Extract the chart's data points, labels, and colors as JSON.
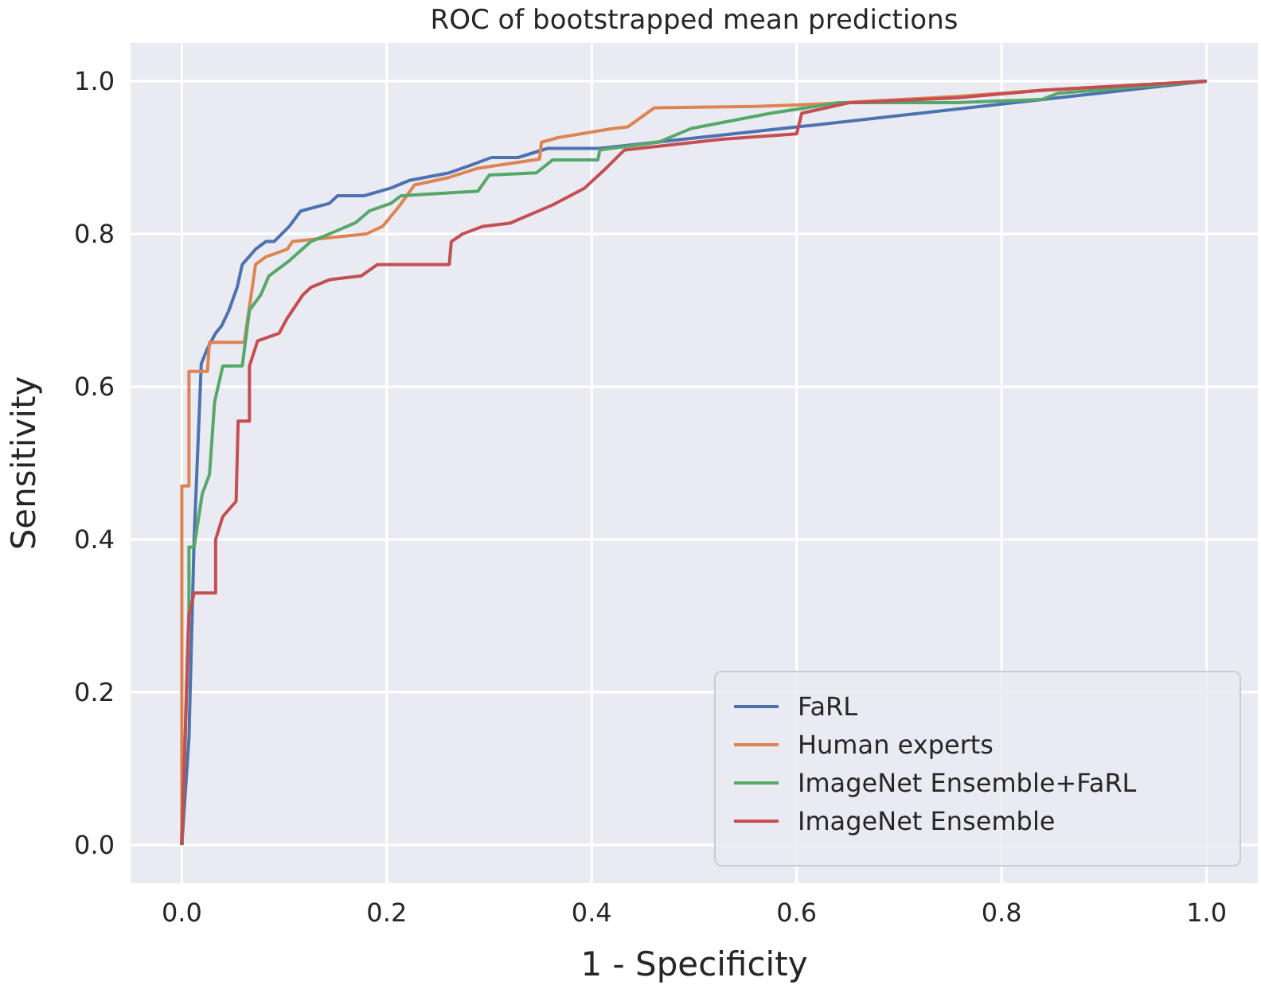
{
  "chart_data": {
    "type": "line",
    "title": "ROC of bootstrapped mean predictions",
    "xlabel": "1 - Specificity",
    "ylabel": "Sensitivity",
    "xlim": [
      -0.05,
      1.05
    ],
    "ylim": [
      -0.05,
      1.05
    ],
    "xticks": [
      {
        "value": 0,
        "label": "0.0"
      },
      {
        "value": 0.2,
        "label": "0.2"
      },
      {
        "value": 0.4,
        "label": "0.4"
      },
      {
        "value": 0.6,
        "label": "0.6"
      },
      {
        "value": 0.8,
        "label": "0.8"
      },
      {
        "value": 1,
        "label": "1.0"
      }
    ],
    "yticks": [
      {
        "value": 0,
        "label": "0.0"
      },
      {
        "value": 0.2,
        "label": "0.2"
      },
      {
        "value": 0.4,
        "label": "0.4"
      },
      {
        "value": 0.6,
        "label": "0.6"
      },
      {
        "value": 0.8,
        "label": "0.8"
      },
      {
        "value": 1,
        "label": "1.0"
      }
    ],
    "grid": true,
    "legend": "bottom right",
    "marker": "none",
    "line_style": "solid",
    "series": [
      {
        "name": "FaRL",
        "color": "#4c72b0",
        "x": [
          0,
          0.007,
          0.012,
          0.019,
          0.025,
          0.033,
          0.039,
          0.046,
          0.054,
          0.059,
          0.072,
          0.082,
          0.09,
          0.105,
          0.116,
          0.144,
          0.152,
          0.178,
          0.204,
          0.222,
          0.261,
          0.282,
          0.302,
          0.328,
          0.357,
          0.408,
          0.6,
          1
        ],
        "values": [
          0,
          0.14,
          0.4,
          0.63,
          0.65,
          0.67,
          0.68,
          0.7,
          0.73,
          0.76,
          0.78,
          0.79,
          0.79,
          0.81,
          0.83,
          0.84,
          0.85,
          0.85,
          0.86,
          0.87,
          0.88,
          0.89,
          0.9,
          0.9,
          0.912,
          0.912,
          0.94,
          1
        ]
      },
      {
        "name": "Human experts",
        "color": "#dd8452",
        "x": [
          0,
          0,
          0.007,
          0.007,
          0.025,
          0.027,
          0.061,
          0.072,
          0.082,
          0.103,
          0.108,
          0.18,
          0.196,
          0.212,
          0.227,
          0.261,
          0.289,
          0.349,
          0.351,
          0.367,
          0.421,
          0.435,
          0.461,
          0.56,
          0.622,
          0.756,
          0.839,
          1
        ],
        "values": [
          0,
          0.47,
          0.47,
          0.62,
          0.62,
          0.658,
          0.658,
          0.76,
          0.77,
          0.78,
          0.79,
          0.8,
          0.81,
          0.836,
          0.864,
          0.874,
          0.886,
          0.898,
          0.92,
          0.926,
          0.938,
          0.94,
          0.965,
          0.967,
          0.97,
          0.98,
          0.988,
          1
        ]
      },
      {
        "name": "ImageNet Ensemble+FaRL",
        "color": "#55a868",
        "x": [
          0,
          0.007,
          0.007,
          0.012,
          0.02,
          0.027,
          0.032,
          0.04,
          0.059,
          0.066,
          0.077,
          0.085,
          0.105,
          0.126,
          0.144,
          0.17,
          0.183,
          0.204,
          0.214,
          0.289,
          0.3,
          0.346,
          0.362,
          0.406,
          0.408,
          0.465,
          0.497,
          0.575,
          0.642,
          0.756,
          0.839,
          0.855,
          1
        ],
        "values": [
          0,
          0.31,
          0.39,
          0.39,
          0.46,
          0.485,
          0.58,
          0.627,
          0.627,
          0.7,
          0.72,
          0.745,
          0.765,
          0.79,
          0.8,
          0.815,
          0.83,
          0.84,
          0.85,
          0.856,
          0.877,
          0.88,
          0.897,
          0.897,
          0.91,
          0.92,
          0.938,
          0.958,
          0.972,
          0.972,
          0.976,
          0.984,
          1
        ]
      },
      {
        "name": "ImageNet Ensemble",
        "color": "#c44e52",
        "x": [
          0,
          0.007,
          0.012,
          0.033,
          0.033,
          0.04,
          0.053,
          0.055,
          0.066,
          0.066,
          0.074,
          0.095,
          0.103,
          0.118,
          0.126,
          0.144,
          0.175,
          0.191,
          0.261,
          0.263,
          0.274,
          0.294,
          0.32,
          0.362,
          0.393,
          0.414,
          0.432,
          0.527,
          0.6,
          0.605,
          0.652,
          0.756,
          0.839,
          1
        ],
        "values": [
          0,
          0.3,
          0.33,
          0.33,
          0.4,
          0.43,
          0.45,
          0.555,
          0.555,
          0.627,
          0.66,
          0.67,
          0.69,
          0.72,
          0.73,
          0.74,
          0.745,
          0.76,
          0.76,
          0.79,
          0.8,
          0.81,
          0.814,
          0.838,
          0.86,
          0.886,
          0.91,
          0.924,
          0.931,
          0.958,
          0.972,
          0.978,
          0.988,
          1
        ]
      }
    ]
  }
}
